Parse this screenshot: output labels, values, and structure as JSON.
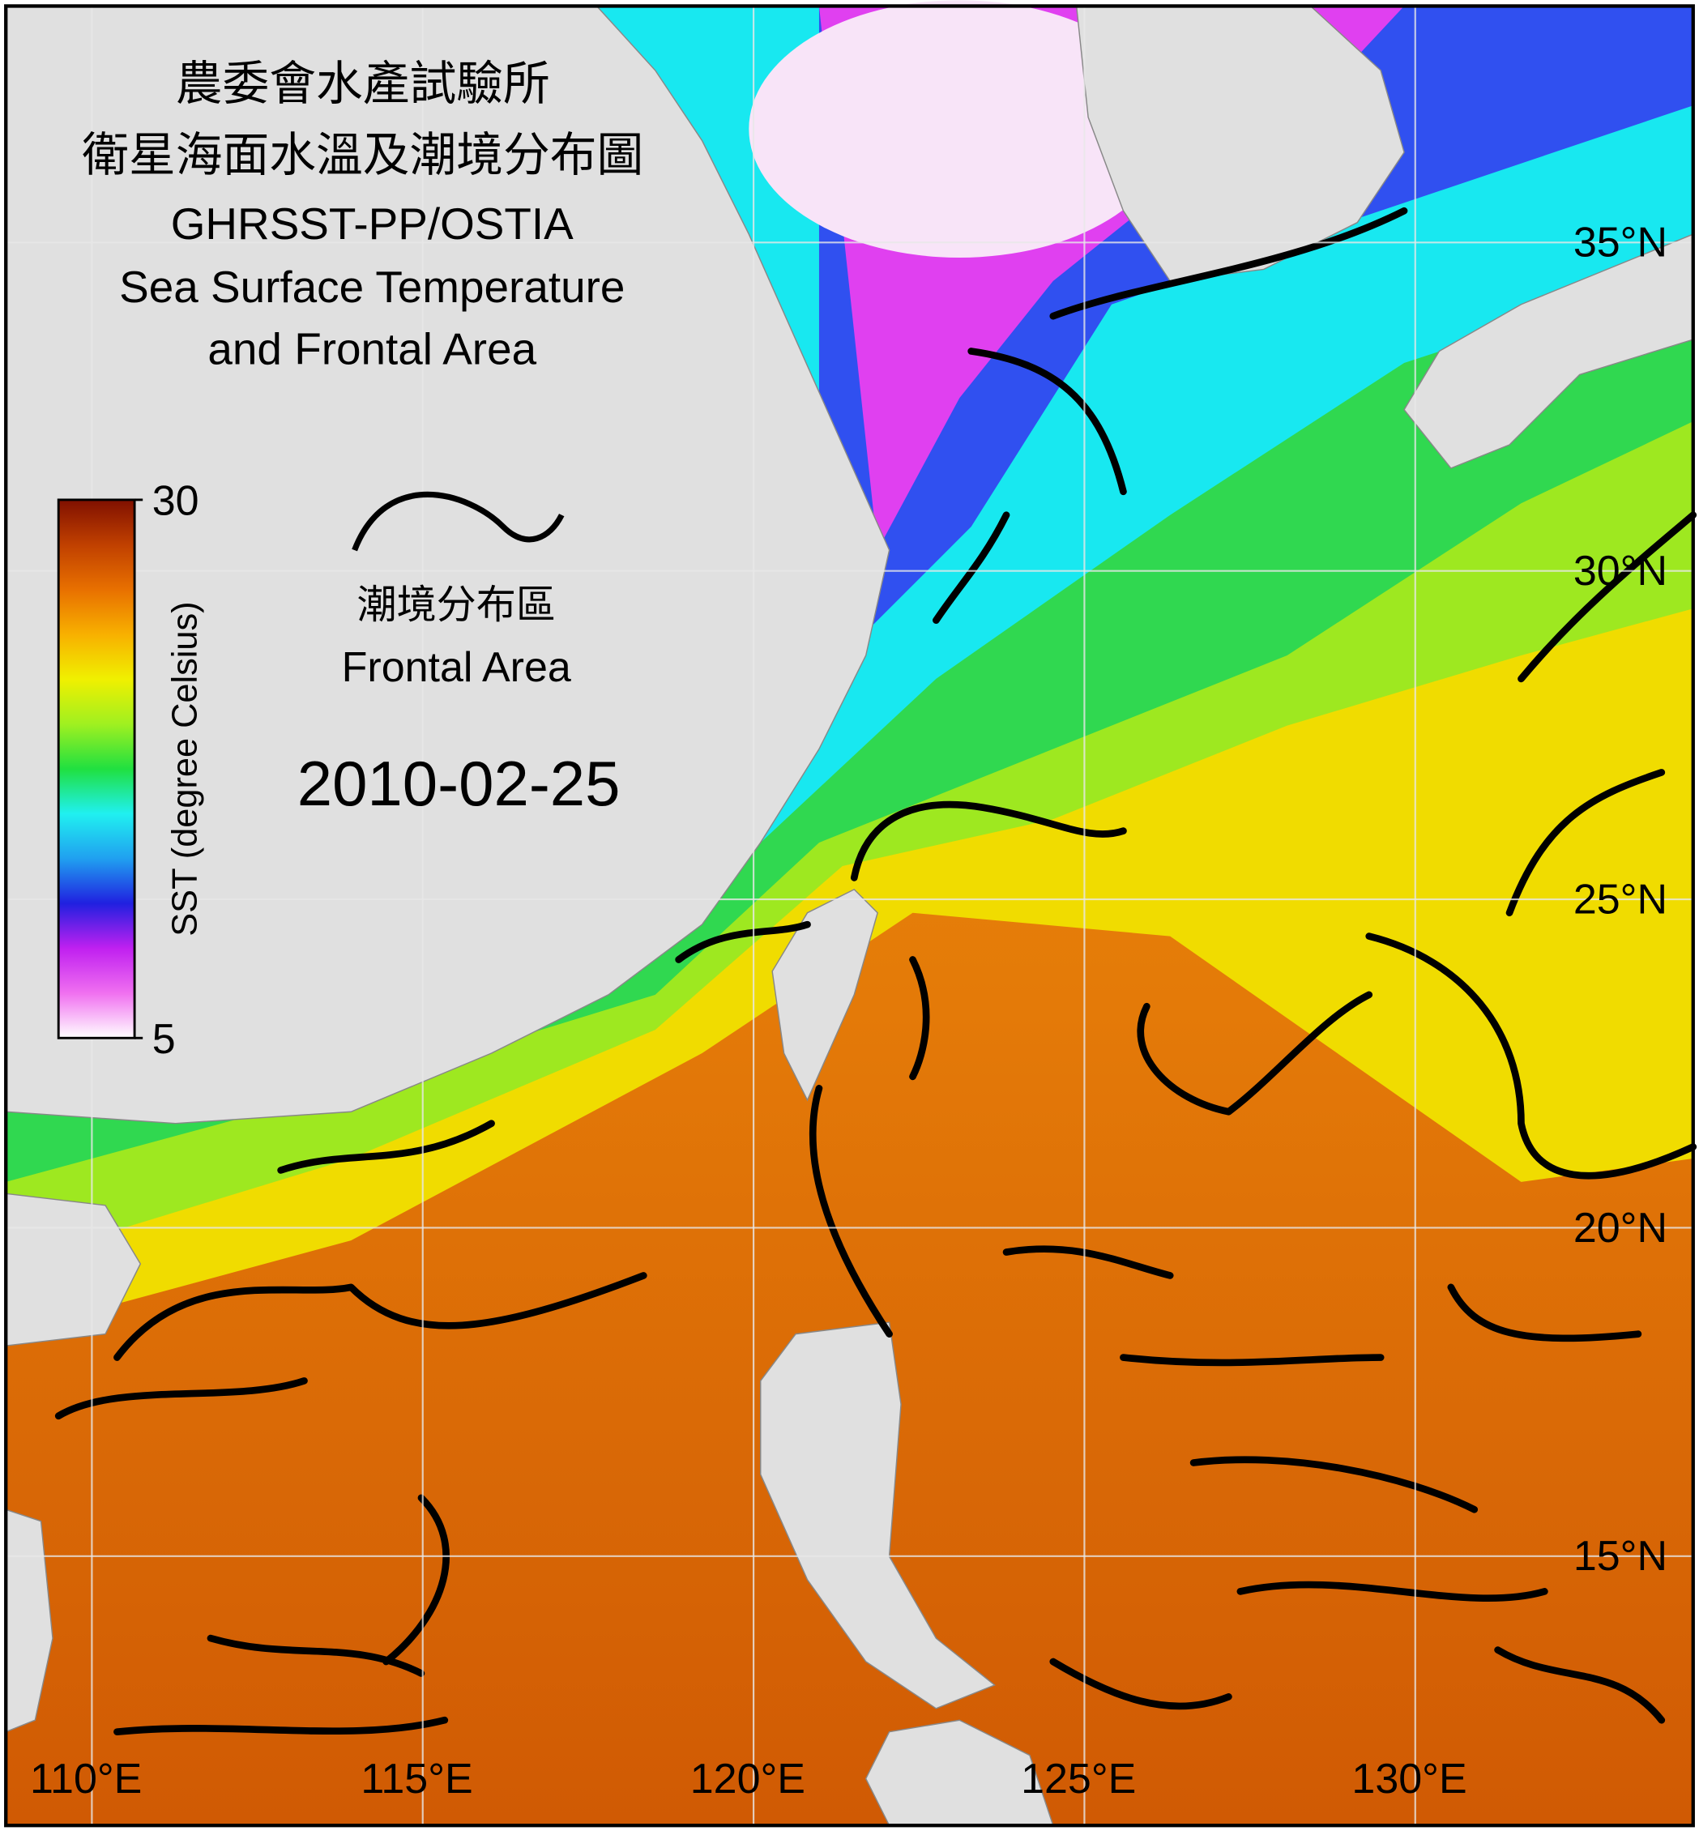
{
  "title": [
    "農委會水產試驗所",
    "衛星海面水溫及潮境分布圖",
    "GHRSST-PP/OSTIA",
    "Sea Surface Temperature",
    "and Frontal Area"
  ],
  "legend": {
    "label": "潮境分布區",
    "label_en": "Frontal Area"
  },
  "date": "2010-02-25",
  "colorbar": {
    "label": "SST (degree Celsius)",
    "lim": [
      5,
      30
    ],
    "ticks": [
      5,
      30
    ],
    "colors": [
      "#ffffff",
      "#f070f0",
      "#c020f0",
      "#2020e0",
      "#20a0f0",
      "#20f0f0",
      "#20e040",
      "#a0f020",
      "#f0f000",
      "#f8b000",
      "#e87000",
      "#c04000",
      "#801000"
    ]
  },
  "map": {
    "xlim": [
      108.7,
      134.2
    ],
    "ylim": [
      10.9,
      38.6
    ],
    "xticks": [
      {
        "value": 110,
        "label": "110°E"
      },
      {
        "value": 115,
        "label": "115°E"
      },
      {
        "value": 120,
        "label": "120°E"
      },
      {
        "value": 125,
        "label": "125°E"
      },
      {
        "value": 130,
        "label": "130°E"
      }
    ],
    "yticks": [
      {
        "value": 15,
        "label": "15°N"
      },
      {
        "value": 20,
        "label": "20°N"
      },
      {
        "value": 25,
        "label": "25°N"
      },
      {
        "value": 30,
        "label": "30°N"
      },
      {
        "value": 35,
        "label": "35°N"
      }
    ]
  }
}
